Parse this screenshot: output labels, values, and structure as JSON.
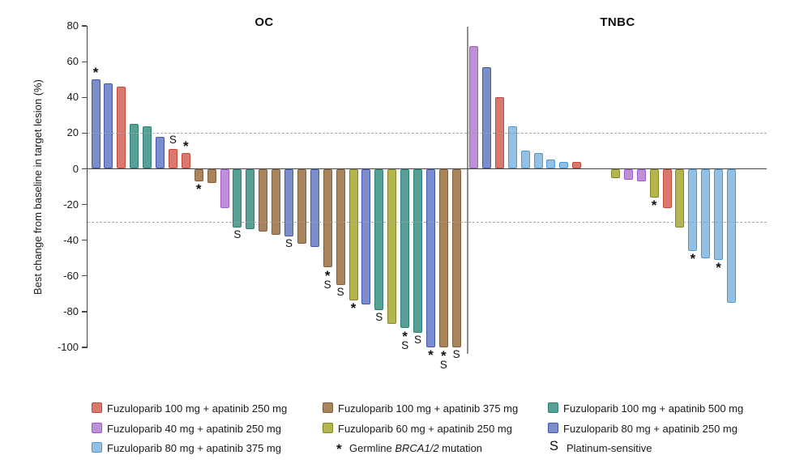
{
  "chart_data": {
    "type": "bar",
    "title": "",
    "ylabel": "Best change from baseline in target lesion (%)",
    "ylim": [
      -100,
      80
    ],
    "yticks": [
      80,
      60,
      40,
      20,
      0,
      -20,
      -40,
      -60,
      -80,
      -100
    ],
    "reference_lines": {
      "upper": 20,
      "lower": -30
    },
    "legend_position": "bottom",
    "marker_meanings": {
      "b": "* Germline BRCA1/2 mutation",
      "s": "S Platinum-sensitive"
    },
    "groups": {
      "g_red": {
        "label": "Fuzuloparib 100 mg + apatinib 250 mg",
        "fill": "#D9796D",
        "border": "#C2493C"
      },
      "g_brown": {
        "label": "Fuzuloparib 100 mg + apatinib 375 mg",
        "fill": "#A8835B",
        "border": "#82613B"
      },
      "g_teal": {
        "label": "Fuzuloparib 100 mg + apatinib 500 mg",
        "fill": "#57A096",
        "border": "#2E7F76"
      },
      "g_purple": {
        "label": "Fuzuloparib 40 mg + apatinib 250 mg",
        "fill": "#BE90D7",
        "border": "#A159C5"
      },
      "g_yellow": {
        "label": "Fuzuloparib 60 mg + apatinib 250 mg",
        "fill": "#B5B54D",
        "border": "#85852C"
      },
      "g_blue": {
        "label": "Fuzuloparib 80 mg + apatinib 250 mg",
        "fill": "#7B8DCB",
        "border": "#4257B0"
      },
      "g_lightblue": {
        "label": "Fuzuloparib 80 mg + apatinib 375 mg",
        "fill": "#93C0E5",
        "border": "#4D99D6"
      }
    },
    "panels": [
      {
        "title": "OC",
        "bars": [
          {
            "v": 50,
            "g": "g_blue",
            "m": "b"
          },
          {
            "v": 48,
            "g": "g_blue",
            "m": ""
          },
          {
            "v": 46,
            "g": "g_red",
            "m": ""
          },
          {
            "v": 25,
            "g": "g_teal",
            "m": ""
          },
          {
            "v": 24,
            "g": "g_teal",
            "m": ""
          },
          {
            "v": 18,
            "g": "g_blue",
            "m": ""
          },
          {
            "v": 11,
            "g": "g_red",
            "m": "s"
          },
          {
            "v": 9,
            "g": "g_red",
            "m": "b"
          },
          {
            "v": -7,
            "g": "g_brown",
            "m": "b"
          },
          {
            "v": -8,
            "g": "g_brown",
            "m": ""
          },
          {
            "v": -22,
            "g": "g_purple",
            "m": ""
          },
          {
            "v": -33,
            "g": "g_teal",
            "m": "s"
          },
          {
            "v": -34,
            "g": "g_teal",
            "m": ""
          },
          {
            "v": -35,
            "g": "g_brown",
            "m": ""
          },
          {
            "v": -37,
            "g": "g_brown",
            "m": ""
          },
          {
            "v": -38,
            "g": "g_blue",
            "m": "s"
          },
          {
            "v": -42,
            "g": "g_brown",
            "m": ""
          },
          {
            "v": -44,
            "g": "g_blue",
            "m": ""
          },
          {
            "v": -55,
            "g": "g_brown",
            "m": "bs"
          },
          {
            "v": -65,
            "g": "g_brown",
            "m": "s"
          },
          {
            "v": -74,
            "g": "g_yellow",
            "m": "b"
          },
          {
            "v": -76,
            "g": "g_blue",
            "m": ""
          },
          {
            "v": -79,
            "g": "g_teal",
            "m": "s"
          },
          {
            "v": -87,
            "g": "g_yellow",
            "m": ""
          },
          {
            "v": -89,
            "g": "g_teal",
            "m": "bs"
          },
          {
            "v": -92,
            "g": "g_teal",
            "m": "s"
          },
          {
            "v": -100,
            "g": "g_blue",
            "m": "b"
          },
          {
            "v": -100,
            "g": "g_brown",
            "m": "bs"
          },
          {
            "v": -100,
            "g": "g_brown",
            "m": "s"
          }
        ]
      },
      {
        "title": "TNBC",
        "bars": [
          {
            "v": 69,
            "g": "g_purple",
            "m": ""
          },
          {
            "v": 57,
            "g": "g_blue",
            "m": ""
          },
          {
            "v": 40,
            "g": "g_red",
            "m": ""
          },
          {
            "v": 24,
            "g": "g_lightblue",
            "m": ""
          },
          {
            "v": 10,
            "g": "g_lightblue",
            "m": ""
          },
          {
            "v": 9,
            "g": "g_lightblue",
            "m": ""
          },
          {
            "v": 5,
            "g": "g_lightblue",
            "m": ""
          },
          {
            "v": 4,
            "g": "g_lightblue",
            "m": ""
          },
          {
            "v": 4,
            "g": "g_red",
            "m": ""
          },
          {
            "v": 0,
            "g": null,
            "m": ""
          },
          {
            "v": 0,
            "g": null,
            "m": ""
          },
          {
            "v": -5,
            "g": "g_yellow",
            "m": ""
          },
          {
            "v": -6,
            "g": "g_purple",
            "m": ""
          },
          {
            "v": -7,
            "g": "g_purple",
            "m": ""
          },
          {
            "v": -16,
            "g": "g_yellow",
            "m": "b"
          },
          {
            "v": -22,
            "g": "g_red",
            "m": ""
          },
          {
            "v": -33,
            "g": "g_yellow",
            "m": ""
          },
          {
            "v": -46,
            "g": "g_lightblue",
            "m": "b"
          },
          {
            "v": -50,
            "g": "g_lightblue",
            "m": ""
          },
          {
            "v": -51,
            "g": "g_lightblue",
            "m": "b"
          },
          {
            "v": -75,
            "g": "g_lightblue",
            "m": ""
          }
        ]
      }
    ]
  },
  "legend": {
    "entries": [
      {
        "kind": "swatch",
        "group": "g_red"
      },
      {
        "kind": "swatch",
        "group": "g_brown"
      },
      {
        "kind": "swatch",
        "group": "g_teal"
      },
      {
        "kind": "swatch",
        "group": "g_purple"
      },
      {
        "kind": "swatch",
        "group": "g_yellow"
      },
      {
        "kind": "swatch",
        "group": "g_blue"
      },
      {
        "kind": "swatch",
        "group": "g_lightblue"
      },
      {
        "kind": "symbol",
        "symbol": "*",
        "text_prefix": "Germline ",
        "text_italic": "BRCA1/2",
        "text_suffix": " mutation"
      },
      {
        "kind": "symbol",
        "symbol": "S",
        "text": "Platinum-sensitive"
      }
    ]
  }
}
